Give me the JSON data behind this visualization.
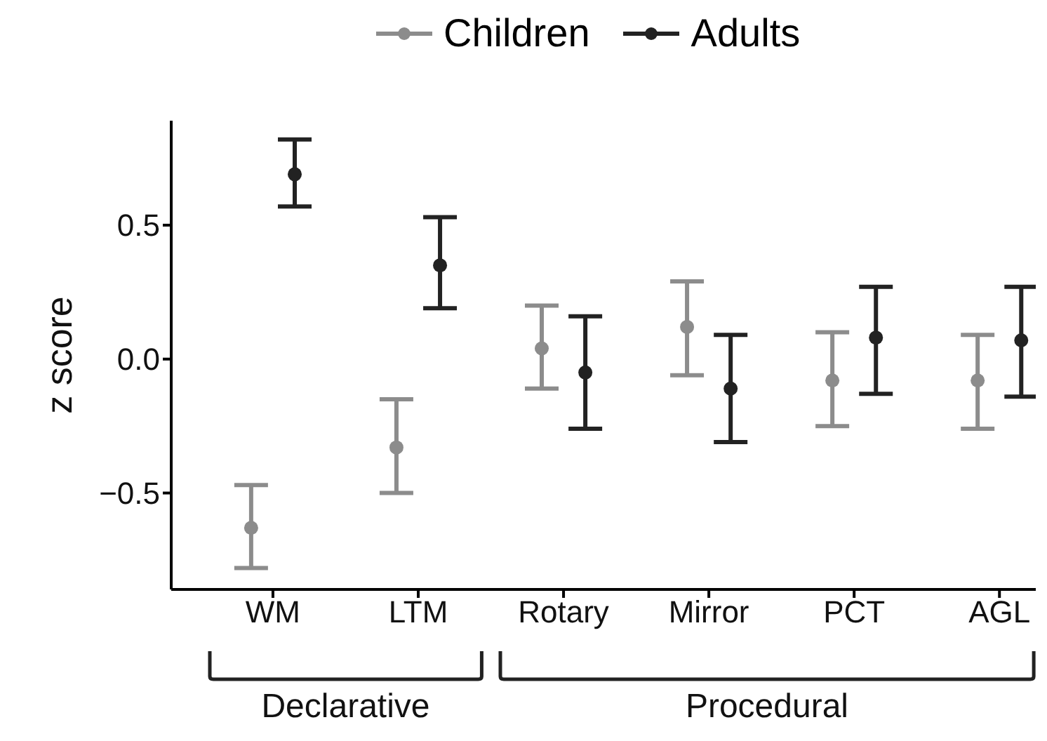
{
  "chart_data": {
    "type": "scatter",
    "ylabel": "z score",
    "categories": [
      "WM",
      "LTM",
      "Rotary",
      "Mirror",
      "PCT",
      "AGL"
    ],
    "series": [
      {
        "name": "Children",
        "color": "#8c8c8c",
        "values": [
          -0.63,
          -0.33,
          0.04,
          0.12,
          -0.08,
          -0.08
        ],
        "errors": [
          [
            -0.78,
            -0.47
          ],
          [
            -0.5,
            -0.15
          ],
          [
            -0.11,
            0.2
          ],
          [
            -0.06,
            0.29
          ],
          [
            -0.25,
            0.1
          ],
          [
            -0.26,
            0.09
          ]
        ]
      },
      {
        "name": "Adults",
        "color": "#222222",
        "values": [
          0.69,
          0.35,
          -0.05,
          -0.11,
          0.08,
          0.07
        ],
        "errors": [
          [
            0.57,
            0.82
          ],
          [
            0.19,
            0.53
          ],
          [
            -0.26,
            0.16
          ],
          [
            -0.31,
            0.09
          ],
          [
            -0.13,
            0.27
          ],
          [
            -0.14,
            0.27
          ]
        ]
      }
    ],
    "ylim": [
      -0.86,
      0.89
    ],
    "yticks": [
      {
        "value": -0.5,
        "label": "−0.5"
      },
      {
        "value": 0,
        "label": "0.0"
      },
      {
        "value": 0.5,
        "label": "0.5"
      }
    ],
    "grid": false,
    "legend": "top",
    "marker": "circle",
    "annotations": [
      "Declarative",
      "Procedural"
    ]
  }
}
